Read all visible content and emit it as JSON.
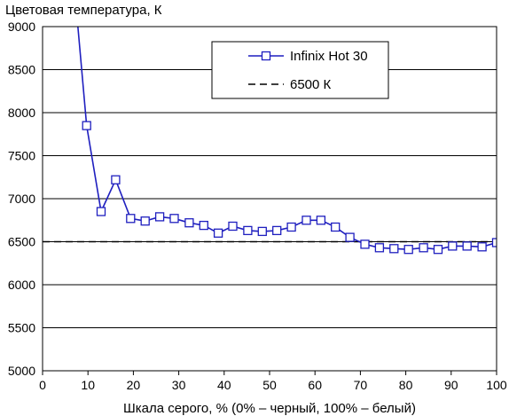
{
  "chart_data": {
    "type": "line",
    "ylabel": "Цветовая температура, К",
    "xlabel": "Шкала серого, % (0% – черный, 100% – белый)",
    "xlim": [
      0,
      100
    ],
    "ylim": [
      5000,
      9000
    ],
    "xticks": [
      0,
      10,
      20,
      30,
      40,
      50,
      60,
      70,
      80,
      90,
      100
    ],
    "yticks": [
      5000,
      5500,
      6000,
      6500,
      7000,
      7500,
      8000,
      8500,
      9000
    ],
    "grid": "horizontal",
    "legend_position": "top-right",
    "series": [
      {
        "name": "Infinix Hot 30",
        "color": "#1f1fbf",
        "style": "solid",
        "marker": "square",
        "x": [
          7.7,
          9.7,
          12.9,
          16.1,
          19.4,
          22.6,
          25.8,
          29.0,
          32.3,
          35.5,
          38.7,
          41.9,
          45.2,
          48.4,
          51.6,
          54.8,
          58.1,
          61.3,
          64.5,
          67.7,
          71.0,
          74.2,
          77.4,
          80.6,
          83.9,
          87.1,
          90.3,
          93.5,
          96.8,
          100.0
        ],
        "y": [
          9050,
          7850,
          6850,
          7220,
          6770,
          6740,
          6790,
          6770,
          6720,
          6690,
          6600,
          6680,
          6630,
          6620,
          6630,
          6670,
          6750,
          6750,
          6670,
          6550,
          6470,
          6430,
          6420,
          6410,
          6430,
          6410,
          6450,
          6450,
          6440,
          6490
        ],
        "markers_from_index": 1
      },
      {
        "name": "6500 К",
        "color": "#000000",
        "style": "dashed",
        "x": [
          0,
          100
        ],
        "y": [
          6500,
          6500
        ]
      }
    ]
  }
}
